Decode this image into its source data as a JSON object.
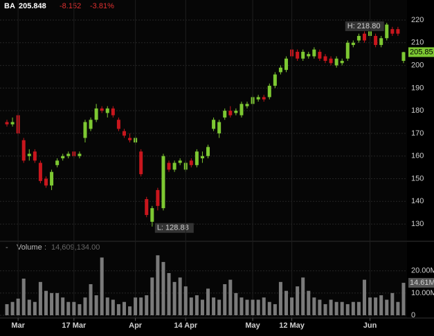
{
  "header": {
    "symbol": "BA",
    "price": "205.848",
    "change": "-8.152",
    "change_pct": "-3.81%"
  },
  "chart_data": [
    {
      "type": "candlestick",
      "up_color": "#7dc832",
      "down_color": "#c8161d",
      "open": [
        175,
        174,
        178,
        167,
        160,
        162,
        157,
        150,
        147,
        156,
        159,
        160,
        162,
        160,
        168,
        172,
        176,
        181,
        179,
        181,
        176,
        171,
        168,
        166,
        162,
        141,
        131,
        145,
        137,
        157,
        154,
        157,
        154,
        158,
        156,
        159,
        160,
        172,
        170,
        177,
        180,
        179,
        178,
        182,
        183,
        185,
        186,
        186,
        191,
        197,
        198,
        207,
        206,
        203,
        204,
        204,
        206,
        204,
        203,
        200,
        201,
        203,
        209,
        211,
        214,
        213,
        213,
        209,
        212,
        216,
        216,
        202
      ],
      "high": [
        176,
        177,
        179,
        168,
        163,
        163,
        158,
        151,
        154,
        159,
        161,
        162,
        162,
        162,
        176,
        177,
        183,
        182,
        182,
        182,
        177,
        172,
        170,
        169,
        163,
        142,
        138,
        146,
        161,
        158,
        158,
        159,
        158,
        159,
        163,
        162,
        165,
        177,
        176,
        181,
        182,
        181,
        184,
        184,
        187,
        187,
        187,
        192,
        197,
        200,
        204,
        210,
        207,
        207,
        206,
        208,
        207,
        205,
        204,
        204,
        203,
        211,
        211,
        214,
        215,
        216,
        214,
        213,
        218.8,
        217,
        217,
        206
      ],
      "low": [
        173,
        173,
        169,
        157,
        158,
        157,
        148,
        146,
        145,
        155,
        158,
        159,
        159,
        159,
        166,
        171,
        175,
        179,
        177,
        177,
        171,
        168,
        166,
        165,
        151,
        133,
        128.88,
        136,
        136,
        153,
        153,
        156,
        153,
        155,
        155,
        157,
        159,
        171,
        168,
        176,
        177,
        178,
        177,
        181,
        182,
        184,
        184,
        185,
        190,
        196,
        197,
        203,
        202,
        202,
        203,
        203,
        202,
        201,
        200,
        199,
        200,
        202,
        208,
        210,
        210,
        212,
        208,
        208,
        211,
        213,
        213,
        201
      ],
      "close": [
        174,
        175,
        170,
        158,
        161,
        158,
        149,
        147,
        153,
        158,
        160,
        161,
        160,
        161,
        175,
        176,
        181,
        180,
        181,
        178,
        172,
        169,
        167,
        168,
        152,
        134,
        137,
        138,
        160,
        154,
        157,
        158,
        157,
        156,
        162,
        160,
        164,
        176,
        175,
        180,
        178,
        180,
        183,
        183,
        186,
        186,
        185,
        191,
        196,
        199,
        203,
        204,
        203,
        206,
        205,
        207,
        203,
        202,
        201,
        203,
        202,
        210,
        210,
        213,
        211,
        215,
        209,
        212,
        218,
        214,
        214,
        205.848
      ],
      "ylim": [
        122.7,
        228.85
      ],
      "yticks": [
        130,
        140,
        150,
        160,
        170,
        180,
        190,
        200,
        210,
        220
      ],
      "grid": true,
      "high_label": "H: 218.80",
      "low_label": "L: 128.88",
      "last_label": "205.85"
    },
    {
      "type": "bar",
      "title": "Volume",
      "current_value": "14,609,134.00",
      "color": "#7a7a7a",
      "categories": [
        null,
        null,
        "Mar",
        null,
        null,
        null,
        null,
        null,
        null,
        null,
        null,
        null,
        "17 Mar",
        null,
        null,
        null,
        null,
        null,
        null,
        null,
        null,
        null,
        null,
        "Apr",
        null,
        null,
        null,
        null,
        null,
        null,
        null,
        null,
        "14 Apr",
        null,
        null,
        null,
        null,
        null,
        null,
        null,
        null,
        null,
        null,
        null,
        "May",
        null,
        null,
        null,
        null,
        null,
        null,
        "12 May",
        null,
        null,
        null,
        null,
        null,
        null,
        null,
        null,
        null,
        null,
        null,
        null,
        null,
        "Jun",
        null,
        null,
        null,
        null,
        null,
        null
      ],
      "values": [
        5000000,
        6000000,
        7500000,
        16500000,
        7000000,
        6000000,
        15000000,
        11000000,
        10000000,
        10000000,
        8000000,
        6000000,
        6000000,
        5000000,
        8000000,
        14000000,
        9000000,
        26000000,
        8000000,
        7000000,
        5000000,
        6000000,
        4000000,
        8000000,
        8000000,
        9000000,
        17000000,
        27000000,
        24000000,
        19000000,
        15000000,
        17000000,
        13000000,
        8000000,
        9000000,
        7000000,
        12000000,
        8000000,
        7000000,
        14000000,
        16000000,
        10000000,
        8000000,
        7000000,
        7000000,
        7000000,
        8000000,
        6000000,
        5000000,
        15000000,
        11000000,
        8000000,
        13000000,
        17000000,
        11000000,
        8000000,
        7000000,
        5000000,
        7000000,
        6000000,
        6000000,
        5000000,
        6000000,
        6000000,
        16000000,
        8000000,
        8000000,
        9000000,
        7000000,
        10000000,
        6000000,
        14609134
      ],
      "last_label": "14.61M",
      "ylim": [
        0,
        33000000
      ],
      "yticks": [
        0,
        {
          "value": 10000000,
          "label": "10.00M"
        },
        {
          "value": 20000000,
          "label": "20.00M"
        }
      ]
    }
  ]
}
